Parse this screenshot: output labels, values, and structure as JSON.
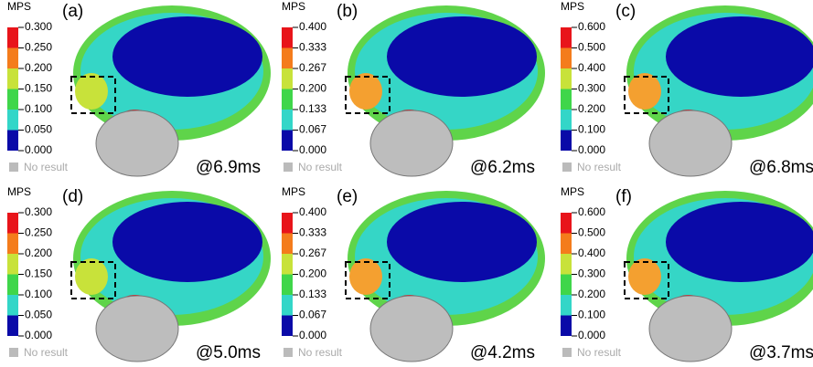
{
  "panels": [
    {
      "label": "(a)",
      "unit": "MPS",
      "ticks": [
        "0.300",
        "0.250",
        "0.200",
        "0.150",
        "0.100",
        "0.050",
        "0.000"
      ],
      "no_result": "No result",
      "time": "@6.9ms"
    },
    {
      "label": "(b)",
      "unit": "MPS",
      "ticks": [
        "0.400",
        "0.333",
        "0.267",
        "0.200",
        "0.133",
        "0.067",
        "0.000"
      ],
      "no_result": "No result",
      "time": "@6.2ms"
    },
    {
      "label": "(c)",
      "unit": "MPS",
      "ticks": [
        "0.600",
        "0.500",
        "0.400",
        "0.300",
        "0.200",
        "0.100",
        "0.000"
      ],
      "no_result": "No result",
      "time": "@6.8ms"
    },
    {
      "label": "(d)",
      "unit": "MPS",
      "ticks": [
        "0.300",
        "0.250",
        "0.200",
        "0.150",
        "0.100",
        "0.050",
        "0.000"
      ],
      "no_result": "No result",
      "time": "@5.0ms"
    },
    {
      "label": "(e)",
      "unit": "MPS",
      "ticks": [
        "0.400",
        "0.333",
        "0.267",
        "0.200",
        "0.133",
        "0.067",
        "0.000"
      ],
      "no_result": "No result",
      "time": "@4.2ms"
    },
    {
      "label": "(f)",
      "unit": "MPS",
      "ticks": [
        "0.600",
        "0.500",
        "0.400",
        "0.300",
        "0.200",
        "0.100",
        "0.000"
      ],
      "no_result": "No result",
      "time": "@3.7ms"
    }
  ]
}
